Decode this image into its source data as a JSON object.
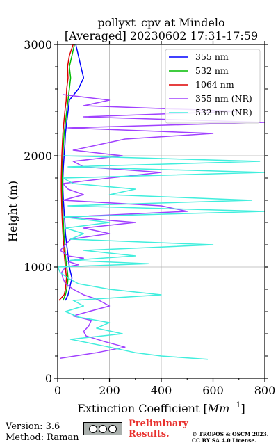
{
  "chart_data": {
    "type": "line",
    "title_line1": "pollyxt_cpv at Mindelo",
    "title_line2": "[Averaged] 20230602 17:31-17:59",
    "xlabel": "Extinction Coefficient [",
    "xlabel_unit": "Mm",
    "xlabel_exp": "−1",
    "xlabel_close": "]",
    "ylabel": "Height (m)",
    "xlim": [
      0,
      800
    ],
    "ylim": [
      0,
      3000
    ],
    "xticks": [
      "0",
      "200",
      "400",
      "600",
      "800"
    ],
    "yticks": [
      "0",
      "1000",
      "2000",
      "3000"
    ],
    "grid": true,
    "legend_position": "top-right",
    "series": [
      {
        "name": "355 nm",
        "color": "#0000ff",
        "y": [
          700,
          750,
          800,
          850,
          900,
          950,
          1000,
          1100,
          1200,
          1300,
          1400,
          1500,
          1600,
          1700,
          1800,
          1900,
          2000,
          2100,
          2200,
          2300,
          2400,
          2500,
          2600,
          2700,
          2800,
          2900,
          3000
        ],
        "x": [
          30,
          40,
          45,
          50,
          55,
          50,
          45,
          40,
          35,
          30,
          28,
          25,
          22,
          20,
          20,
          22,
          25,
          28,
          30,
          35,
          40,
          45,
          80,
          100,
          90,
          80,
          70
        ]
      },
      {
        "name": "532 nm",
        "color": "#00bb00",
        "y": [
          700,
          750,
          800,
          850,
          900,
          950,
          1000,
          1100,
          1200,
          1300,
          1400,
          1500,
          1600,
          1700,
          1800,
          1900,
          2000,
          2100,
          2200,
          2300,
          2400,
          2500,
          2600,
          2700,
          2800,
          2900,
          3000
        ],
        "x": [
          20,
          30,
          35,
          38,
          40,
          38,
          35,
          30,
          27,
          24,
          22,
          20,
          18,
          17,
          17,
          18,
          20,
          22,
          25,
          30,
          35,
          40,
          45,
          50,
          45,
          55,
          65
        ]
      },
      {
        "name": "1064 nm",
        "color": "#dd0000",
        "y": [
          700,
          750,
          800,
          850,
          900,
          950,
          1000,
          1100,
          1200,
          1300,
          1400,
          1500,
          1600,
          1700,
          1800,
          1900,
          2000,
          2100,
          2200,
          2300,
          2400,
          2500,
          2600,
          2700,
          2800,
          2900,
          3000
        ],
        "x": [
          5,
          25,
          30,
          32,
          34,
          32,
          30,
          26,
          23,
          20,
          18,
          16,
          15,
          14,
          14,
          15,
          16,
          18,
          20,
          24,
          28,
          33,
          35,
          40,
          38,
          45,
          60
        ]
      },
      {
        "name": "355 nm (NR)",
        "color": "#a040ff",
        "y": [
          180,
          230,
          280,
          330,
          380,
          420,
          470,
          520,
          560,
          600,
          650,
          700,
          720,
          750,
          800,
          850,
          900,
          950,
          1000,
          1020,
          1050,
          1080,
          1100,
          1150,
          1200,
          1250,
          1300,
          1350,
          1400,
          1450,
          1500,
          1550,
          1600,
          1650,
          1700,
          1750,
          1800,
          1850,
          1900,
          1950,
          2000,
          2050,
          2100,
          2150,
          2200,
          2250,
          2300,
          2350,
          2400,
          2450,
          2500,
          2550
        ],
        "x": [
          10,
          150,
          260,
          180,
          110,
          100,
          120,
          130,
          60,
          120,
          200,
          160,
          140,
          100,
          60,
          30,
          20,
          15,
          30,
          80,
          40,
          100,
          40,
          10,
          30,
          50,
          200,
          100,
          300,
          40,
          500,
          400,
          20,
          100,
          40,
          20,
          200,
          400,
          100,
          60,
          250,
          60,
          160,
          260,
          600,
          40,
          800,
          100,
          700,
          100,
          200,
          20
        ]
      },
      {
        "name": "532 nm (NR)",
        "color": "#40eedd",
        "y": [
          170,
          200,
          230,
          280,
          350,
          400,
          450,
          500,
          550,
          600,
          650,
          700,
          750,
          800,
          850,
          900,
          950,
          1000,
          1030,
          1060,
          1100,
          1150,
          1200,
          1250,
          1300,
          1350,
          1400,
          1450,
          1500,
          1550,
          1600,
          1650,
          1700,
          1750,
          1800,
          1850,
          1900,
          1950,
          2000
        ],
        "x": [
          580,
          400,
          300,
          200,
          50,
          250,
          150,
          200,
          80,
          30,
          100,
          60,
          400,
          200,
          80,
          40,
          10,
          0,
          350,
          50,
          300,
          100,
          600,
          50,
          100,
          30,
          200,
          20,
          800,
          40,
          750,
          200,
          300,
          60,
          20,
          800,
          40,
          780,
          20
        ]
      }
    ]
  },
  "footer": {
    "version": "Version: 3.6",
    "method": "Method: Raman",
    "prelim_line1": "Preliminary",
    "prelim_line2": "Results.",
    "copyright_line1": "© TROPOS & OSCM 2023.",
    "copyright_line2": "CC BY SA 4.0 License."
  }
}
